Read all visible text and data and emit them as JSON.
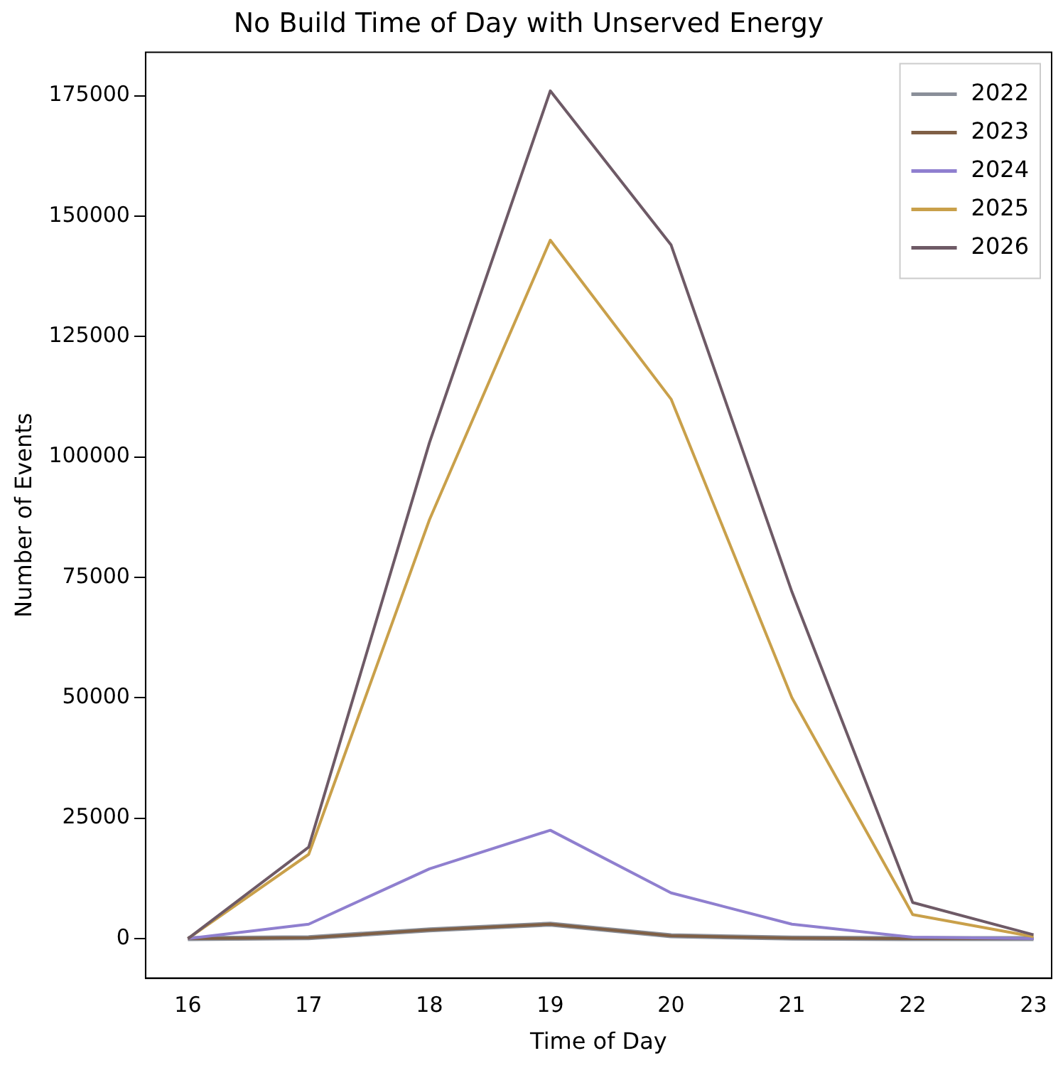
{
  "chart_data": {
    "type": "line",
    "title": "No Build Time of Day with Unserved Energy",
    "xlabel": "Time of Day",
    "ylabel": "Number of Events",
    "x": [
      16,
      17,
      18,
      19,
      20,
      21,
      22,
      23
    ],
    "series": [
      {
        "name": "2022",
        "color": "#8a8f99",
        "values": [
          0,
          200,
          1800,
          3000,
          600,
          100,
          0,
          0
        ]
      },
      {
        "name": "2023",
        "color": "#7f5f45",
        "values": [
          0,
          200,
          1800,
          3000,
          600,
          100,
          0,
          0
        ]
      },
      {
        "name": "2024",
        "color": "#8f7fcf",
        "values": [
          0,
          3000,
          14500,
          22500,
          9500,
          3000,
          300,
          0
        ]
      },
      {
        "name": "2025",
        "color": "#c9a04a",
        "values": [
          0,
          17500,
          87000,
          145000,
          112000,
          50000,
          5000,
          400
        ]
      },
      {
        "name": "2026",
        "color": "#6e5a66",
        "values": [
          0,
          19000,
          103000,
          176000,
          144000,
          72000,
          7500,
          800
        ]
      }
    ],
    "xlim": [
      15.65,
      23.15
    ],
    "xticks": [
      16,
      17,
      18,
      19,
      20,
      21,
      22,
      23
    ],
    "ylim": [
      -8200,
      184000
    ],
    "yticks": [
      0,
      25000,
      50000,
      75000,
      100000,
      125000,
      150000,
      175000
    ],
    "grid": false,
    "legend": "top right",
    "marker": "none",
    "line_style": "solid"
  }
}
